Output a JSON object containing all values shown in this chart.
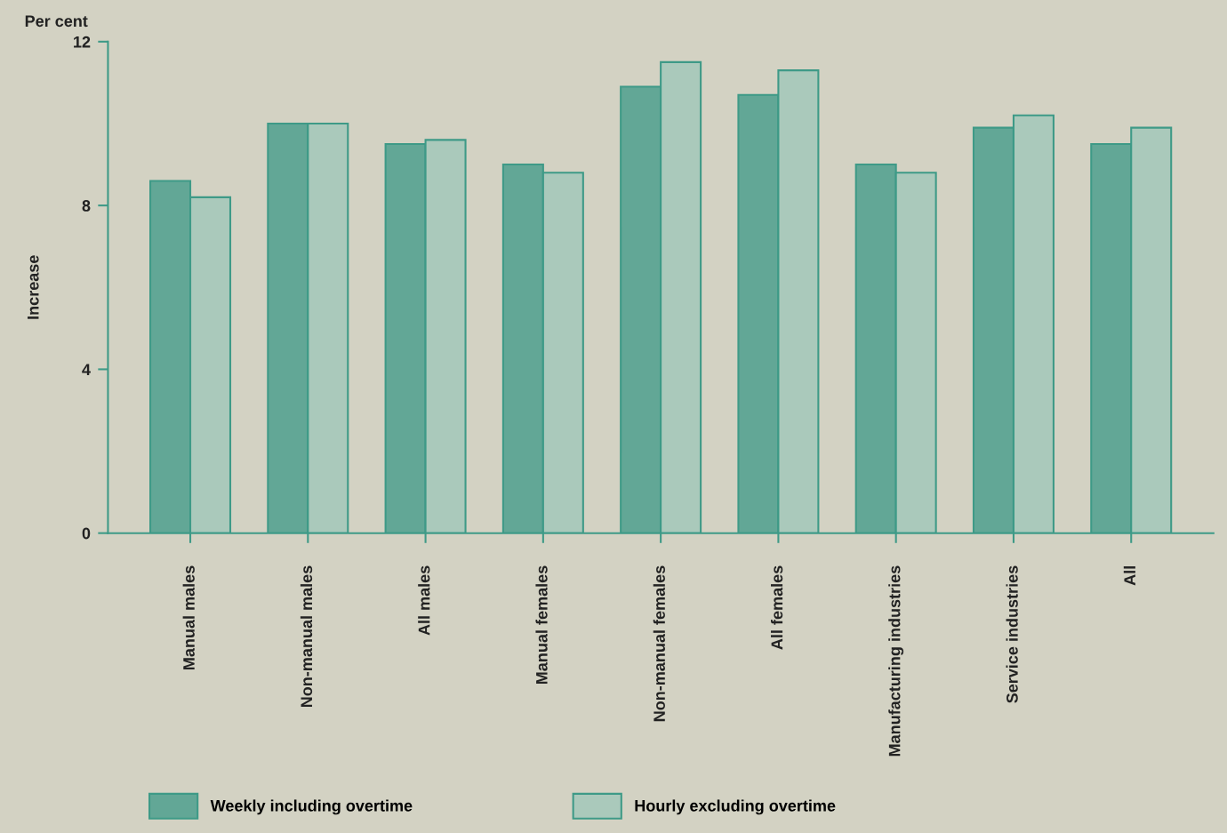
{
  "chart_data": {
    "type": "bar",
    "ylabel": "Increase",
    "annotations": [
      "Per cent"
    ],
    "categories": [
      "Manual males",
      "Non-manual males",
      "All males",
      "Manual females",
      "Non-manual females",
      "All females",
      "Manufacturing industries",
      "Service industries",
      "All"
    ],
    "series": [
      {
        "name": "Weekly including overtime",
        "color": "#62a796",
        "values": [
          8.6,
          10.0,
          9.5,
          9.0,
          10.9,
          10.7,
          9.0,
          9.9,
          9.5
        ]
      },
      {
        "name": "Hourly excluding overtime",
        "color": "#aac9bb",
        "values": [
          8.2,
          10.0,
          9.6,
          8.8,
          11.5,
          11.3,
          8.8,
          10.2,
          9.9
        ]
      }
    ],
    "ylim": [
      0,
      12
    ],
    "yticks": [
      0,
      4,
      8,
      12
    ],
    "grid": false,
    "legend": "bottom"
  }
}
